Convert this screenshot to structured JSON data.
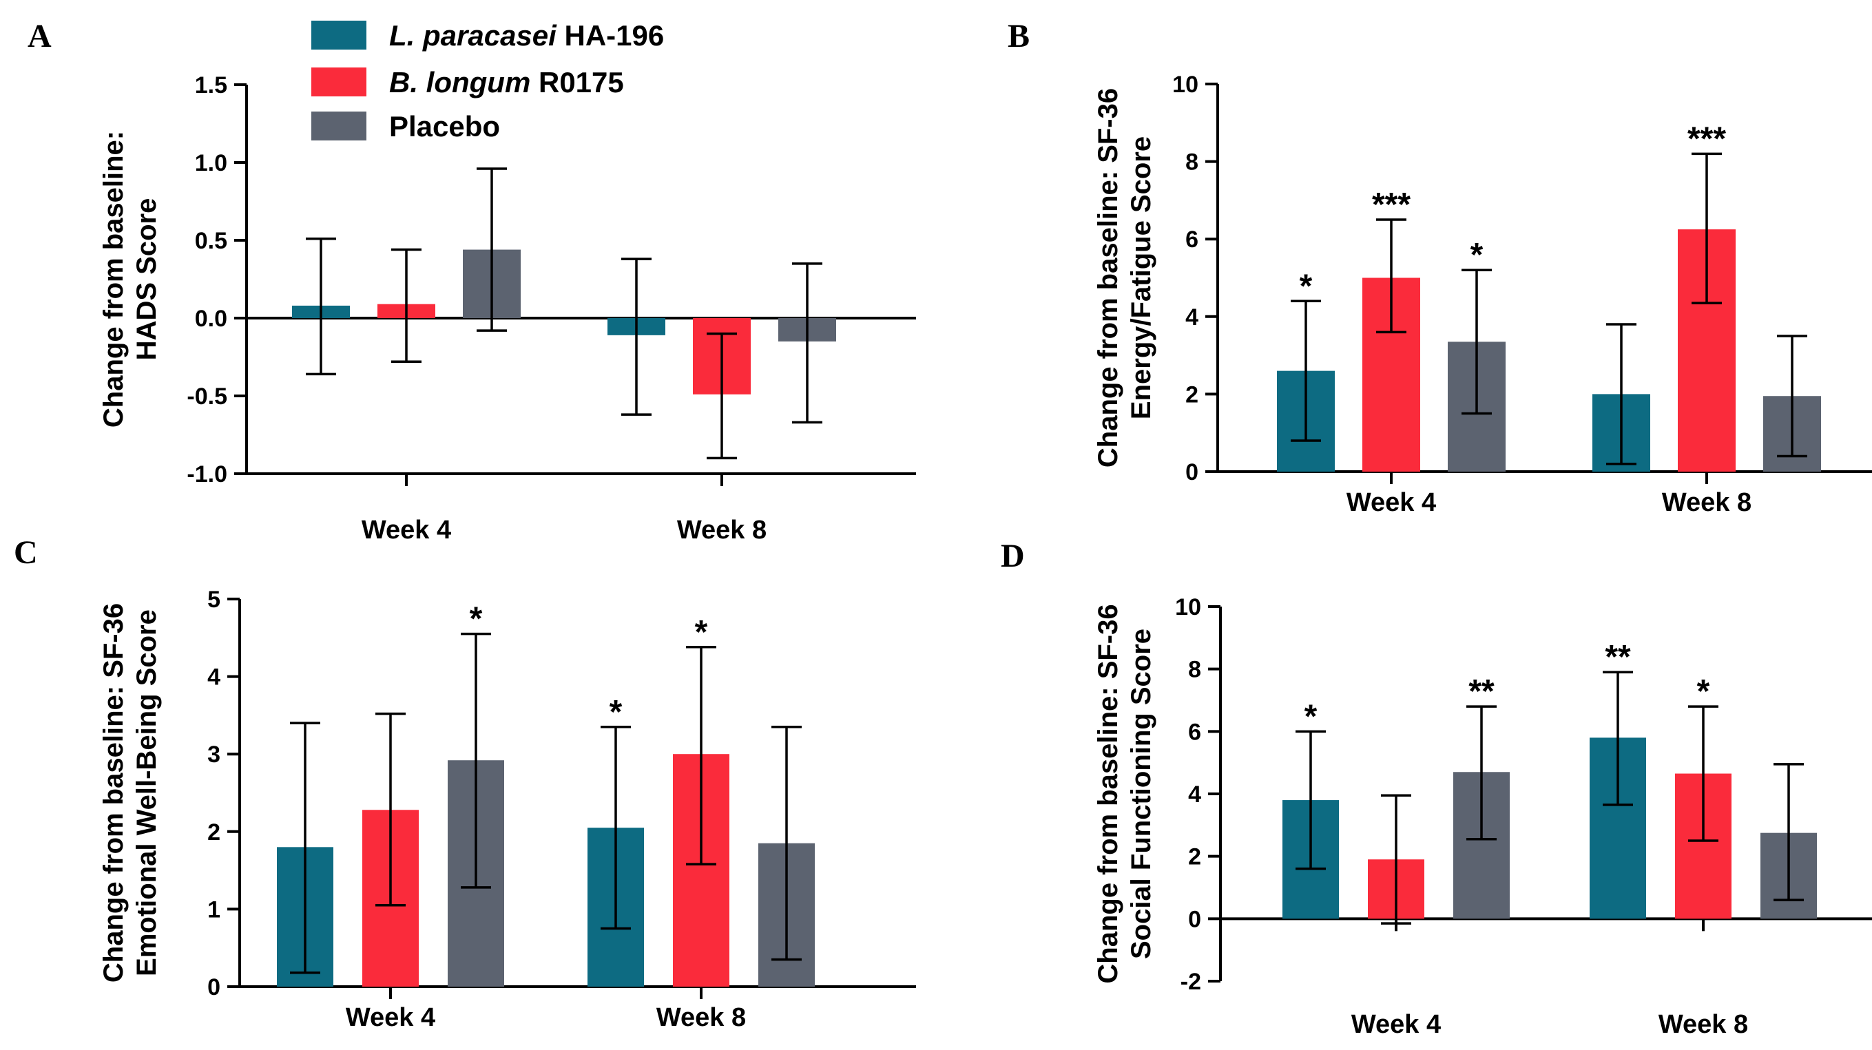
{
  "chart_data": [
    {
      "panel": "A",
      "type": "bar",
      "categories": [
        "Week 4",
        "Week 8"
      ],
      "ylabel": [
        "Change from baseline:",
        "HADS Score"
      ],
      "ylim": [
        -1.0,
        1.5
      ],
      "yticks": [
        -1.0,
        -0.5,
        0.0,
        0.5,
        1.0,
        1.5
      ],
      "ytick_labels": [
        "-1.0",
        "-0.5",
        "0.0",
        "0.5",
        "1.0",
        "1.5"
      ],
      "series": [
        {
          "name": "L. paracasei HA-196",
          "values": [
            0.08,
            -0.11
          ],
          "err_low": [
            -0.36,
            -0.62
          ],
          "err_high": [
            0.51,
            0.38
          ],
          "signif": [
            "",
            ""
          ]
        },
        {
          "name": "B. longum R0175",
          "values": [
            0.09,
            -0.49
          ],
          "err_low": [
            -0.28,
            -0.9
          ],
          "err_high": [
            0.44,
            -0.1
          ],
          "signif": [
            "",
            ""
          ]
        },
        {
          "name": "Placebo",
          "values": [
            0.44,
            -0.15
          ],
          "err_low": [
            -0.08,
            -0.67
          ],
          "err_high": [
            0.96,
            0.35
          ],
          "signif": [
            "",
            ""
          ]
        }
      ]
    },
    {
      "panel": "B",
      "type": "bar",
      "categories": [
        "Week 4",
        "Week 8"
      ],
      "ylabel": [
        "Change from baseline: SF-36",
        "Energy/Fatigue Score"
      ],
      "ylim": [
        0,
        10
      ],
      "yticks": [
        0,
        2,
        4,
        6,
        8,
        10
      ],
      "ytick_labels": [
        "0",
        "2",
        "4",
        "6",
        "8",
        "10"
      ],
      "series": [
        {
          "name": "L. paracasei HA-196",
          "values": [
            2.6,
            2.0
          ],
          "err_low": [
            0.8,
            0.2
          ],
          "err_high": [
            4.4,
            3.8
          ],
          "signif": [
            "*",
            ""
          ]
        },
        {
          "name": "B. longum R0175",
          "values": [
            5.0,
            6.25
          ],
          "err_low": [
            3.6,
            4.35
          ],
          "err_high": [
            6.5,
            8.2
          ],
          "signif": [
            "***",
            "***"
          ]
        },
        {
          "name": "Placebo",
          "values": [
            3.35,
            1.95
          ],
          "err_low": [
            1.5,
            0.4
          ],
          "err_high": [
            5.2,
            3.5
          ],
          "signif": [
            "*",
            ""
          ]
        }
      ]
    },
    {
      "panel": "C",
      "type": "bar",
      "categories": [
        "Week 4",
        "Week 8"
      ],
      "ylabel": [
        "Change from baseline: SF-36",
        "Emotional Well-Being Score"
      ],
      "ylim": [
        0,
        5
      ],
      "yticks": [
        0,
        1,
        2,
        3,
        4,
        5
      ],
      "ytick_labels": [
        "0",
        "1",
        "2",
        "3",
        "4",
        "5"
      ],
      "series": [
        {
          "name": "L. paracasei HA-196",
          "values": [
            1.8,
            2.05
          ],
          "err_low": [
            0.18,
            0.75
          ],
          "err_high": [
            3.4,
            3.35
          ],
          "signif": [
            "",
            "*"
          ]
        },
        {
          "name": "B. longum R0175",
          "values": [
            2.28,
            3.0
          ],
          "err_low": [
            1.05,
            1.58
          ],
          "err_high": [
            3.52,
            4.38
          ],
          "signif": [
            "",
            "*"
          ]
        },
        {
          "name": "Placebo",
          "values": [
            2.92,
            1.85
          ],
          "err_low": [
            1.28,
            0.35
          ],
          "err_high": [
            4.55,
            3.35
          ],
          "signif": [
            "*",
            ""
          ]
        }
      ]
    },
    {
      "panel": "D",
      "type": "bar",
      "categories": [
        "Week 4",
        "Week 8"
      ],
      "ylabel": [
        "Change from baseline: SF-36",
        "Social Functioning Score"
      ],
      "ylim": [
        -2,
        10
      ],
      "yticks": [
        -2,
        0,
        2,
        4,
        6,
        8,
        10
      ],
      "ytick_labels": [
        "-2",
        "0",
        "2",
        "4",
        "6",
        "8",
        "10"
      ],
      "series": [
        {
          "name": "L. paracasei HA-196",
          "values": [
            3.8,
            5.8
          ],
          "err_low": [
            1.6,
            3.65
          ],
          "err_high": [
            6.0,
            7.9
          ],
          "signif": [
            "*",
            "**"
          ]
        },
        {
          "name": "B. longum R0175",
          "values": [
            1.9,
            4.65
          ],
          "err_low": [
            -0.15,
            2.5
          ],
          "err_high": [
            3.95,
            6.8
          ],
          "signif": [
            "",
            "*"
          ]
        },
        {
          "name": "Placebo",
          "values": [
            4.7,
            2.75
          ],
          "err_low": [
            2.55,
            0.6
          ],
          "err_high": [
            6.8,
            4.95
          ],
          "signif": [
            "**",
            ""
          ]
        }
      ]
    }
  ],
  "legend": {
    "items": [
      {
        "italic": "L. paracasei",
        "plain": " HA-196"
      },
      {
        "italic": "B. longum",
        "plain": " R0175"
      },
      {
        "italic": "",
        "plain": "Placebo"
      }
    ]
  },
  "colors": {
    "series": [
      "#0d6b82",
      "#fa2b3b",
      "#5c6370"
    ],
    "axis": "#000000"
  }
}
